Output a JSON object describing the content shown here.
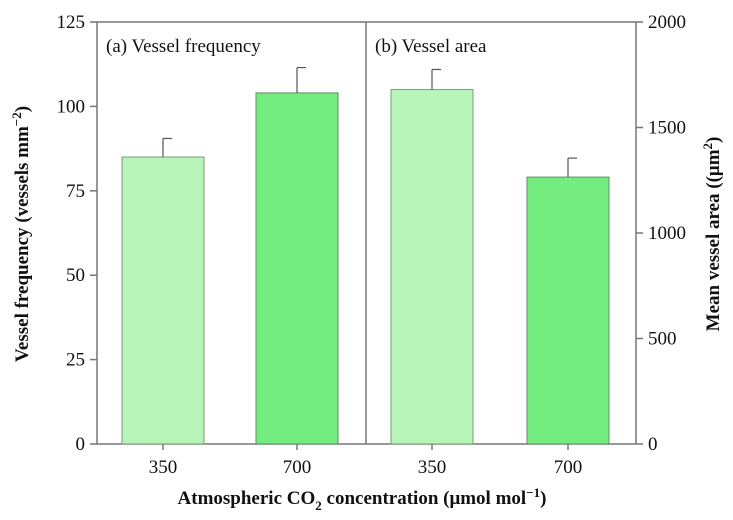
{
  "chart_data": [
    {
      "type": "bar",
      "panel_label": "(a) Vessel frequency",
      "categories": [
        "350",
        "700"
      ],
      "values": [
        85,
        104
      ],
      "errors": [
        5.5,
        7.5
      ],
      "ylabel": "Vessel frequency (vessels mm",
      "ylabel_sup": "−2",
      "ylabel_end": ")",
      "ylim": [
        0,
        125
      ],
      "yticks": [
        "0",
        "25",
        "50",
        "75",
        "100",
        "125"
      ],
      "colors": [
        "#b7f4b7",
        "#74ec7f"
      ]
    },
    {
      "type": "bar",
      "panel_label": "(b) Vessel area",
      "categories": [
        "350",
        "700"
      ],
      "values": [
        1680,
        1265
      ],
      "errors": [
        95,
        90
      ],
      "ylabel": "Mean vessel area ((μm",
      "ylabel_sup": "2",
      "ylabel_end": ")",
      "ylim": [
        0,
        2000
      ],
      "yticks": [
        "0",
        "500",
        "1000",
        "1500",
        "2000"
      ],
      "colors": [
        "#b7f4b7",
        "#74ec7f"
      ]
    }
  ],
  "xlabel": {
    "main": "Atmospheric CO",
    "sub": "2",
    "mid": " concentration (μmol mol",
    "sup": "−1",
    "end": ")"
  }
}
